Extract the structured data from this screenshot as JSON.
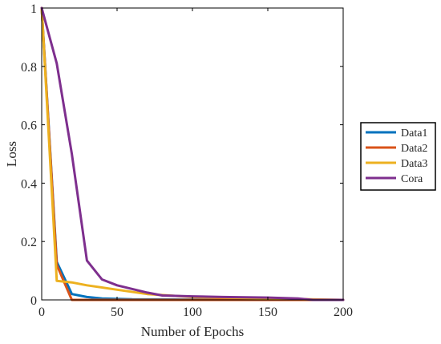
{
  "chart_data": {
    "type": "line",
    "title": "",
    "xlabel": "Number of Epochs",
    "ylabel": "Loss",
    "xlim": [
      0,
      200
    ],
    "ylim": [
      0,
      1
    ],
    "xticks": [
      0,
      50,
      100,
      150,
      200
    ],
    "yticks": [
      0,
      0.2,
      0.4,
      0.6,
      0.8,
      1
    ],
    "ytick_labels": [
      "0",
      "0.2",
      "0.4",
      "0.6",
      "0.8",
      "1"
    ],
    "grid": false,
    "legend_position": "right-outside",
    "series": [
      {
        "name": "Data1",
        "color": "#0072BD",
        "points": [
          [
            0,
            1.0
          ],
          [
            10,
            0.13
          ],
          [
            20,
            0.02
          ],
          [
            30,
            0.01
          ],
          [
            40,
            0.005
          ],
          [
            60,
            0.002
          ],
          [
            100,
            0.001
          ],
          [
            150,
            0.0005
          ],
          [
            200,
            0.0
          ]
        ]
      },
      {
        "name": "Data2",
        "color": "#D95319",
        "points": [
          [
            0,
            1.0
          ],
          [
            10,
            0.12
          ],
          [
            20,
            0.0
          ],
          [
            30,
            0.0
          ],
          [
            60,
            0.0
          ],
          [
            100,
            0.0
          ],
          [
            150,
            0.0
          ],
          [
            200,
            0.0
          ]
        ]
      },
      {
        "name": "Data3",
        "color": "#EDB120",
        "points": [
          [
            0,
            1.0
          ],
          [
            10,
            0.065
          ],
          [
            20,
            0.06
          ],
          [
            30,
            0.05
          ],
          [
            50,
            0.035
          ],
          [
            70,
            0.02
          ],
          [
            100,
            0.01
          ],
          [
            150,
            0.005
          ],
          [
            200,
            0.0
          ]
        ]
      },
      {
        "name": "Cora",
        "color": "#7E2F8E",
        "points": [
          [
            0,
            1.0
          ],
          [
            10,
            0.81
          ],
          [
            20,
            0.5
          ],
          [
            30,
            0.135
          ],
          [
            40,
            0.07
          ],
          [
            50,
            0.05
          ],
          [
            70,
            0.025
          ],
          [
            80,
            0.015
          ],
          [
            100,
            0.012
          ],
          [
            120,
            0.01
          ],
          [
            150,
            0.008
          ],
          [
            170,
            0.005
          ],
          [
            180,
            0.0
          ],
          [
            200,
            0.0
          ]
        ]
      }
    ]
  }
}
